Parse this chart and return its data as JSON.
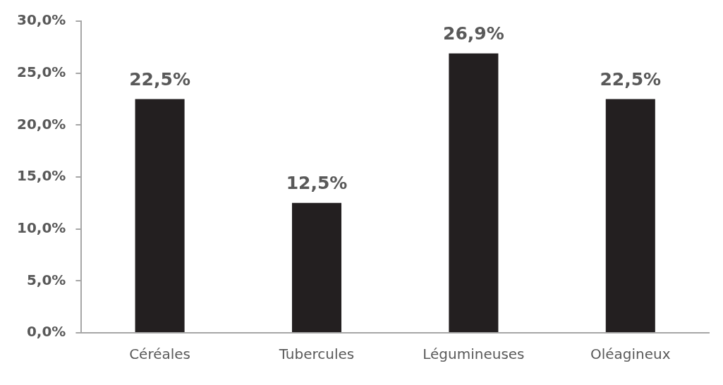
{
  "chart_data": {
    "type": "bar",
    "categories": [
      "Céréales",
      "Tubercules",
      "Légumineuses",
      "Oléagineux"
    ],
    "values": [
      22.5,
      12.5,
      26.9,
      22.5
    ],
    "color": "#231f20",
    "value_labels": [
      "22,5%",
      "12,5%",
      "26,9%",
      "22,5%"
    ],
    "ylim": [
      0,
      30
    ],
    "yticks": [
      {
        "value": 0,
        "label": "0,0%"
      },
      {
        "value": 5,
        "label": "5,0%"
      },
      {
        "value": 10,
        "label": "10,0%"
      },
      {
        "value": 15,
        "label": "15,0%"
      },
      {
        "value": 20,
        "label": "20,0%"
      },
      {
        "value": 25,
        "label": "25,0%"
      },
      {
        "value": 30,
        "label": "30,0%"
      }
    ],
    "grid": false,
    "legend": false
  }
}
